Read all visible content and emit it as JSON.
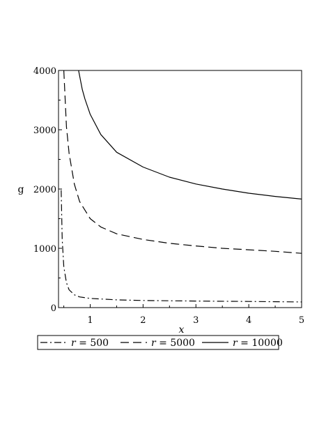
{
  "chart_data": {
    "type": "line",
    "title": "",
    "xlabel": "x",
    "ylabel": "g",
    "xlim": [
      0.4,
      5
    ],
    "ylim": [
      0,
      4000
    ],
    "x_ticks": [
      1,
      2,
      3,
      4,
      5
    ],
    "y_ticks": [
      0,
      1000,
      2000,
      3000,
      4000
    ],
    "legend_position": "bottom",
    "grid": false,
    "series": [
      {
        "name": "500",
        "legend_var": "r",
        "dash": "dashdot",
        "color": "#000000",
        "x": [
          0.45,
          0.47,
          0.5,
          0.55,
          0.6,
          0.7,
          0.8,
          1.0,
          1.5,
          2.0,
          3.0,
          4.0,
          5.0
        ],
        "y": [
          1980,
          1150,
          690,
          420,
          300,
          215,
          180,
          155,
          130,
          120,
          110,
          103,
          95
        ]
      },
      {
        "name": "5000",
        "legend_var": "r",
        "dash": "dash",
        "color": "#000000",
        "x": [
          0.5,
          0.55,
          0.6,
          0.7,
          0.8,
          1.0,
          1.2,
          1.5,
          2.0,
          2.5,
          3.0,
          3.5,
          4.0,
          4.5,
          5.0
        ],
        "y": [
          4000,
          3050,
          2600,
          2080,
          1790,
          1500,
          1360,
          1245,
          1150,
          1085,
          1040,
          1000,
          975,
          950,
          915
        ]
      },
      {
        "name": "10000",
        "legend_var": "r",
        "dash": "solid",
        "color": "#000000",
        "x": [
          0.78,
          0.85,
          0.9,
          1.0,
          1.2,
          1.5,
          2.0,
          2.5,
          3.0,
          3.5,
          4.0,
          4.5,
          5.0
        ],
        "y": [
          4000,
          3680,
          3520,
          3260,
          2920,
          2620,
          2370,
          2200,
          2085,
          2000,
          1930,
          1875,
          1830
        ]
      }
    ]
  }
}
